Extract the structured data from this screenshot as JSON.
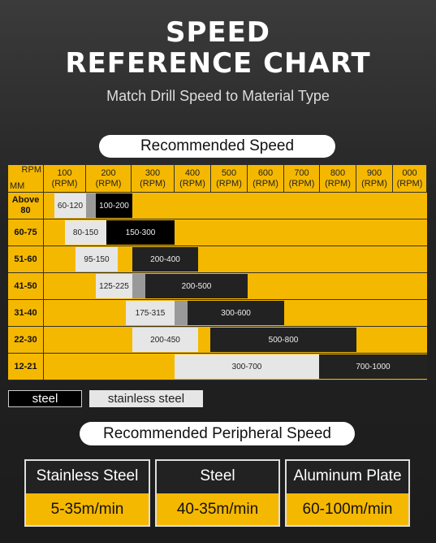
{
  "title_lines": [
    "SPEED",
    "REFERENCE CHART"
  ],
  "subtitle": "Match Drill Speed to Material Type",
  "speed_table": {
    "heading": "Recommended Speed",
    "corner": {
      "top": "RPM",
      "bottom": "MM"
    },
    "columns": [
      {
        "value": "100",
        "unit": "(RPM)"
      },
      {
        "value": "200",
        "unit": "(RPM)"
      },
      {
        "value": "300",
        "unit": "(RPM)"
      },
      {
        "value": "400",
        "unit": "(RPM)"
      },
      {
        "value": "500",
        "unit": "(RPM)"
      },
      {
        "value": "600",
        "unit": "(RPM)"
      },
      {
        "value": "700",
        "unit": "(RPM)"
      },
      {
        "value": "800",
        "unit": "(RPM)"
      },
      {
        "value": "900",
        "unit": "(RPM)"
      },
      {
        "value": "000",
        "unit": "(RPM)"
      }
    ],
    "rows": [
      {
        "label": "Above 80",
        "stainless": "60-120",
        "steel": "100-200"
      },
      {
        "label": "60-75",
        "stainless": "80-150",
        "steel": "150-300"
      },
      {
        "label": "51-60",
        "stainless": "95-150",
        "steel": "200-400"
      },
      {
        "label": "41-50",
        "stainless": "125-225",
        "steel": "200-500"
      },
      {
        "label": "31-40",
        "stainless": "175-315",
        "steel": "300-600"
      },
      {
        "label": "22-30",
        "stainless": "200-450",
        "steel": "500-800"
      },
      {
        "label": "12-21",
        "stainless": "300-700",
        "steel": "700-1000"
      }
    ]
  },
  "legend": [
    "steel",
    "stainless steel"
  ],
  "peripheral": {
    "heading": "Recommended Peripheral Speed",
    "cards": [
      {
        "material": "Stainless Steel",
        "speed": "5-35m/min"
      },
      {
        "material": "Steel",
        "speed": "40-35m/min"
      },
      {
        "material": "Aluminum Plate",
        "speed": "60-100m/min"
      }
    ]
  }
}
